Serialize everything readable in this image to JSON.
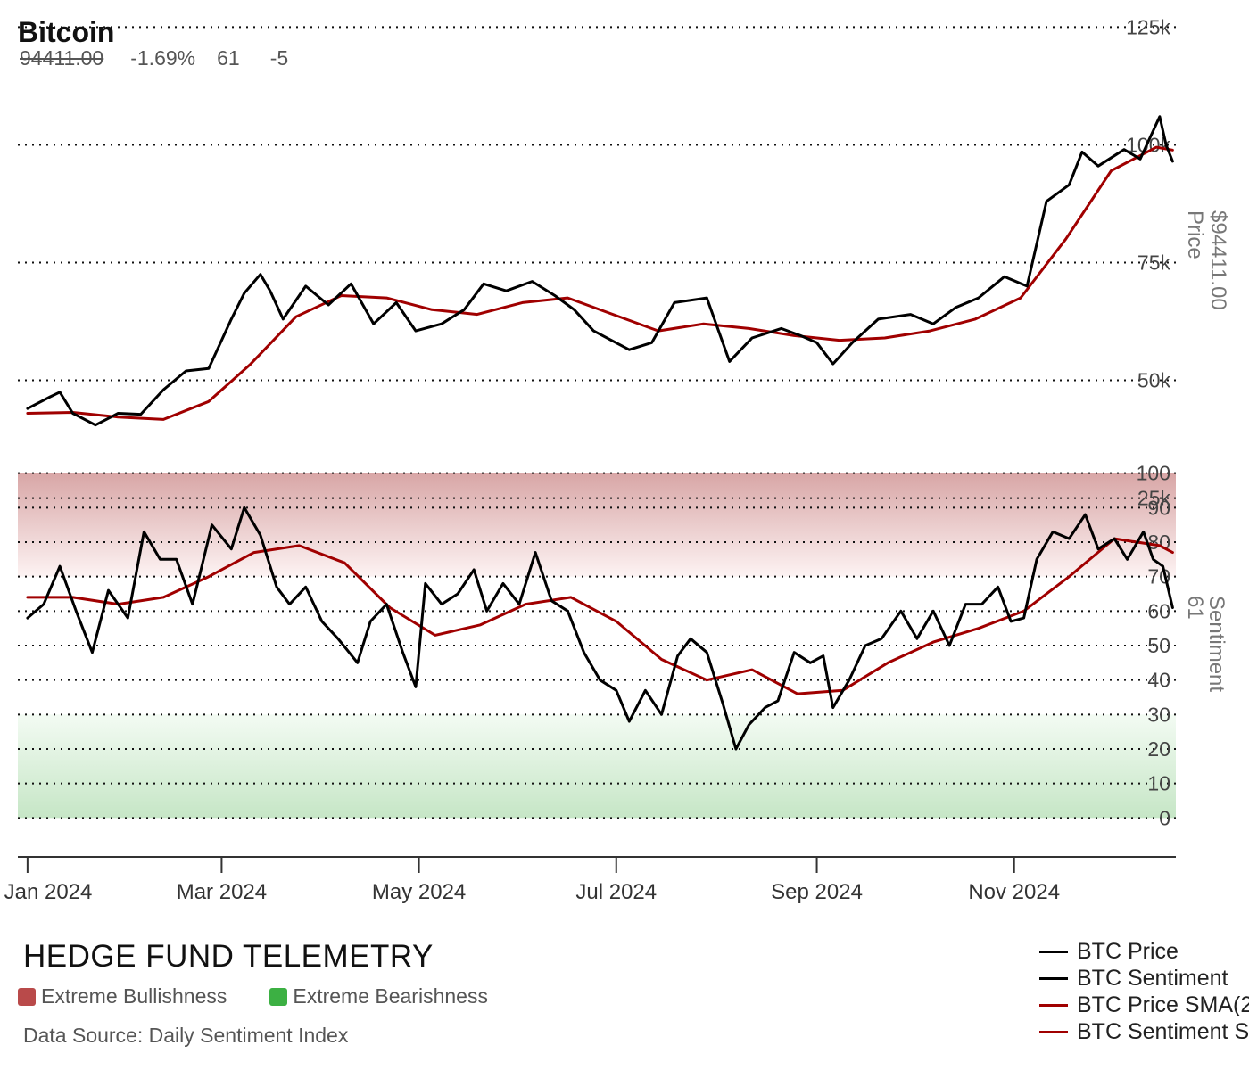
{
  "header": {
    "title": "Bitcoin",
    "price": "94411.00",
    "change": "-1.69%",
    "sentiment": "61",
    "sentiment_change": "-5"
  },
  "footer": {
    "brand": "HEDGE FUND TELEMETRY",
    "key_bull": "Extreme Bullishness",
    "key_bear": "Extreme Bearishness",
    "source": "Data Source: Daily Sentiment Index",
    "bull_color": "#b94a4a",
    "bear_color": "#3cb043"
  },
  "legend": [
    {
      "label": "BTC Price",
      "color": "#000000"
    },
    {
      "label": "BTC Sentiment",
      "color": "#000000"
    },
    {
      "label": "BTC Price SMA(2",
      "color": "#a00000"
    },
    {
      "label": "BTC Sentiment S",
      "color": "#a00000"
    }
  ],
  "chart_data": {
    "type": "line",
    "x_tick_labels": [
      "Jan 2024",
      "Mar 2024",
      "May 2024",
      "Jul 2024",
      "Sep 2024",
      "Nov 2024"
    ],
    "x_tick_dates": [
      "2024-01-01",
      "2024-03-01",
      "2024-05-01",
      "2024-07-01",
      "2024-09-01",
      "2024-11-01"
    ],
    "x_range": [
      "2023-12-29",
      "2024-12-21"
    ],
    "price_panel": {
      "ylabel": "Price",
      "ylabel_value": "$94411.00",
      "ylim": [
        20000,
        130000
      ],
      "y_ticks": [
        25000,
        50000,
        75000,
        100000,
        125000
      ],
      "y_tick_labels": [
        "25k",
        "50k",
        "75k",
        "100k",
        "125k"
      ],
      "grid": "dotted horizontal",
      "series": [
        {
          "name": "BTC Price",
          "color": "#000000",
          "points": [
            [
              "2024-01-01",
              44000
            ],
            [
              "2024-01-08",
              46500
            ],
            [
              "2024-01-11",
              47500
            ],
            [
              "2024-01-15",
              43000
            ],
            [
              "2024-01-22",
              40500
            ],
            [
              "2024-01-29",
              43000
            ],
            [
              "2024-02-05",
              42800
            ],
            [
              "2024-02-12",
              48000
            ],
            [
              "2024-02-19",
              52000
            ],
            [
              "2024-02-26",
              52500
            ],
            [
              "2024-03-04",
              63000
            ],
            [
              "2024-03-08",
              68500
            ],
            [
              "2024-03-13",
              72500
            ],
            [
              "2024-03-16",
              69000
            ],
            [
              "2024-03-20",
              63000
            ],
            [
              "2024-03-27",
              70000
            ],
            [
              "2024-04-03",
              66000
            ],
            [
              "2024-04-10",
              70500
            ],
            [
              "2024-04-17",
              62000
            ],
            [
              "2024-04-24",
              66500
            ],
            [
              "2024-04-30",
              60500
            ],
            [
              "2024-05-08",
              62000
            ],
            [
              "2024-05-15",
              65000
            ],
            [
              "2024-05-21",
              70500
            ],
            [
              "2024-05-28",
              69000
            ],
            [
              "2024-06-05",
              71000
            ],
            [
              "2024-06-12",
              68000
            ],
            [
              "2024-06-18",
              65000
            ],
            [
              "2024-06-24",
              60500
            ],
            [
              "2024-07-05",
              56500
            ],
            [
              "2024-07-12",
              58000
            ],
            [
              "2024-07-19",
              66500
            ],
            [
              "2024-07-29",
              67500
            ],
            [
              "2024-08-05",
              54000
            ],
            [
              "2024-08-12",
              59000
            ],
            [
              "2024-08-21",
              61000
            ],
            [
              "2024-08-27",
              59500
            ],
            [
              "2024-09-01",
              58000
            ],
            [
              "2024-09-06",
              53500
            ],
            [
              "2024-09-12",
              58000
            ],
            [
              "2024-09-20",
              63000
            ],
            [
              "2024-09-30",
              64000
            ],
            [
              "2024-10-07",
              62000
            ],
            [
              "2024-10-14",
              65500
            ],
            [
              "2024-10-21",
              67500
            ],
            [
              "2024-10-29",
              72000
            ],
            [
              "2024-11-05",
              70000
            ],
            [
              "2024-11-11",
              88000
            ],
            [
              "2024-11-18",
              91500
            ],
            [
              "2024-11-22",
              98500
            ],
            [
              "2024-11-27",
              95500
            ],
            [
              "2024-12-05",
              99000
            ],
            [
              "2024-12-10",
              97000
            ],
            [
              "2024-12-16",
              106000
            ],
            [
              "2024-12-18",
              100000
            ],
            [
              "2024-12-20",
              96500
            ]
          ]
        },
        {
          "name": "BTC Price SMA(2",
          "color": "#a00000",
          "points": [
            [
              "2024-01-01",
              43000
            ],
            [
              "2024-01-15",
              43200
            ],
            [
              "2024-01-29",
              42200
            ],
            [
              "2024-02-12",
              41700
            ],
            [
              "2024-02-26",
              45500
            ],
            [
              "2024-03-10",
              53500
            ],
            [
              "2024-03-24",
              63500
            ],
            [
              "2024-04-07",
              68000
            ],
            [
              "2024-04-21",
              67500
            ],
            [
              "2024-05-05",
              65000
            ],
            [
              "2024-05-19",
              64000
            ],
            [
              "2024-06-02",
              66500
            ],
            [
              "2024-06-16",
              67500
            ],
            [
              "2024-06-30",
              64000
            ],
            [
              "2024-07-14",
              60500
            ],
            [
              "2024-07-28",
              62000
            ],
            [
              "2024-08-11",
              61000
            ],
            [
              "2024-08-25",
              59500
            ],
            [
              "2024-09-08",
              58500
            ],
            [
              "2024-09-22",
              59000
            ],
            [
              "2024-10-06",
              60500
            ],
            [
              "2024-10-20",
              63000
            ],
            [
              "2024-11-03",
              67500
            ],
            [
              "2024-11-17",
              80000
            ],
            [
              "2024-12-01",
              94500
            ],
            [
              "2024-12-15",
              99500
            ],
            [
              "2024-12-20",
              98900
            ]
          ]
        }
      ]
    },
    "sentiment_panel": {
      "ylabel": "Sentiment",
      "ylabel_value": "61",
      "ylim": [
        -10,
        110
      ],
      "y_ticks": [
        0,
        10,
        20,
        30,
        40,
        50,
        60,
        70,
        80,
        90,
        100
      ],
      "y_tick_labels": [
        "0",
        "10",
        "20",
        "30",
        "40",
        "50",
        "60",
        "70",
        "80",
        "90",
        "100"
      ],
      "extreme_bullish_band": [
        70,
        100
      ],
      "extreme_bearish_band": [
        0,
        30
      ],
      "series": [
        {
          "name": "BTC Sentiment",
          "color": "#000000",
          "points": [
            [
              "2024-01-01",
              58
            ],
            [
              "2024-01-06",
              62
            ],
            [
              "2024-01-11",
              73
            ],
            [
              "2024-01-16",
              60
            ],
            [
              "2024-01-21",
              48
            ],
            [
              "2024-01-26",
              66
            ],
            [
              "2024-02-01",
              58
            ],
            [
              "2024-02-06",
              83
            ],
            [
              "2024-02-11",
              75
            ],
            [
              "2024-02-16",
              75
            ],
            [
              "2024-02-21",
              62
            ],
            [
              "2024-02-27",
              85
            ],
            [
              "2024-03-04",
              78
            ],
            [
              "2024-03-08",
              90
            ],
            [
              "2024-03-13",
              82
            ],
            [
              "2024-03-18",
              67
            ],
            [
              "2024-03-22",
              62
            ],
            [
              "2024-03-27",
              67
            ],
            [
              "2024-04-01",
              57
            ],
            [
              "2024-04-06",
              52
            ],
            [
              "2024-04-12",
              45
            ],
            [
              "2024-04-16",
              57
            ],
            [
              "2024-04-21",
              62
            ],
            [
              "2024-04-26",
              48
            ],
            [
              "2024-04-30",
              38
            ],
            [
              "2024-05-03",
              68
            ],
            [
              "2024-05-08",
              62
            ],
            [
              "2024-05-13",
              65
            ],
            [
              "2024-05-18",
              72
            ],
            [
              "2024-05-22",
              60
            ],
            [
              "2024-05-27",
              68
            ],
            [
              "2024-06-01",
              62
            ],
            [
              "2024-06-06",
              77
            ],
            [
              "2024-06-11",
              63
            ],
            [
              "2024-06-16",
              60
            ],
            [
              "2024-06-21",
              48
            ],
            [
              "2024-06-26",
              40
            ],
            [
              "2024-07-01",
              37
            ],
            [
              "2024-07-05",
              28
            ],
            [
              "2024-07-10",
              37
            ],
            [
              "2024-07-15",
              30
            ],
            [
              "2024-07-20",
              47
            ],
            [
              "2024-07-24",
              52
            ],
            [
              "2024-07-29",
              48
            ],
            [
              "2024-08-03",
              33
            ],
            [
              "2024-08-07",
              20
            ],
            [
              "2024-08-11",
              27
            ],
            [
              "2024-08-16",
              32
            ],
            [
              "2024-08-20",
              34
            ],
            [
              "2024-08-25",
              48
            ],
            [
              "2024-08-30",
              45
            ],
            [
              "2024-09-03",
              47
            ],
            [
              "2024-09-06",
              32
            ],
            [
              "2024-09-11",
              40
            ],
            [
              "2024-09-16",
              50
            ],
            [
              "2024-09-21",
              52
            ],
            [
              "2024-09-27",
              60
            ],
            [
              "2024-10-02",
              52
            ],
            [
              "2024-10-07",
              60
            ],
            [
              "2024-10-12",
              50
            ],
            [
              "2024-10-17",
              62
            ],
            [
              "2024-10-22",
              62
            ],
            [
              "2024-10-27",
              67
            ],
            [
              "2024-10-31",
              57
            ],
            [
              "2024-11-04",
              58
            ],
            [
              "2024-11-08",
              75
            ],
            [
              "2024-11-13",
              83
            ],
            [
              "2024-11-18",
              81
            ],
            [
              "2024-11-23",
              88
            ],
            [
              "2024-11-27",
              78
            ],
            [
              "2024-12-02",
              81
            ],
            [
              "2024-12-06",
              75
            ],
            [
              "2024-12-11",
              83
            ],
            [
              "2024-12-14",
              75
            ],
            [
              "2024-12-17",
              73
            ],
            [
              "2024-12-20",
              61
            ]
          ]
        },
        {
          "name": "BTC Sentiment S",
          "color": "#a00000",
          "points": [
            [
              "2024-01-01",
              64
            ],
            [
              "2024-01-15",
              64
            ],
            [
              "2024-01-29",
              62
            ],
            [
              "2024-02-12",
              64
            ],
            [
              "2024-02-26",
              70
            ],
            [
              "2024-03-11",
              77
            ],
            [
              "2024-03-25",
              79
            ],
            [
              "2024-04-08",
              74
            ],
            [
              "2024-04-22",
              61
            ],
            [
              "2024-05-06",
              53
            ],
            [
              "2024-05-20",
              56
            ],
            [
              "2024-06-03",
              62
            ],
            [
              "2024-06-17",
              64
            ],
            [
              "2024-07-01",
              57
            ],
            [
              "2024-07-15",
              46
            ],
            [
              "2024-07-29",
              40
            ],
            [
              "2024-08-12",
              43
            ],
            [
              "2024-08-26",
              36
            ],
            [
              "2024-09-09",
              37
            ],
            [
              "2024-09-23",
              45
            ],
            [
              "2024-10-07",
              51
            ],
            [
              "2024-10-21",
              55
            ],
            [
              "2024-11-04",
              60
            ],
            [
              "2024-11-18",
              70
            ],
            [
              "2024-12-02",
              81
            ],
            [
              "2024-12-16",
              79
            ],
            [
              "2024-12-20",
              77
            ]
          ]
        }
      ]
    }
  }
}
